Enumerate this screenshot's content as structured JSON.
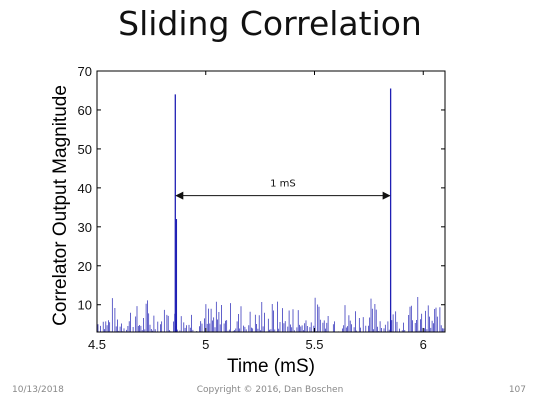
{
  "slide": {
    "title": "Sliding Correlation",
    "footer_date": "10/13/2018",
    "footer_copyright": "Copyright © 2016, Dan Boschen",
    "page_number": "107"
  },
  "chart_data": {
    "type": "bar",
    "title": "",
    "xlabel": "Time (mS)",
    "ylabel": "Correlator Output Magnitude",
    "xlim": [
      4.5,
      6.1
    ],
    "ylim": [
      3,
      70
    ],
    "xticks": [
      4.5,
      5,
      5.5,
      6
    ],
    "xtick_labels": [
      "4.5",
      "5",
      "5.5",
      "6"
    ],
    "yticks": [
      10,
      20,
      30,
      40,
      50,
      60,
      70
    ],
    "ytick_labels": [
      "10",
      "20",
      "30",
      "40",
      "50",
      "60",
      "70"
    ],
    "grid": false,
    "series_color": "#1f1fb4",
    "series": [
      {
        "x": [
          4.86,
          4.865,
          5.85
        ],
        "values": [
          64,
          32,
          65.5
        ]
      }
    ],
    "noise_floor_range": [
      3,
      13
    ],
    "annotations": [
      {
        "text": "1 mS",
        "x_start": 4.86,
        "x_end": 5.85,
        "y": 38
      }
    ]
  }
}
